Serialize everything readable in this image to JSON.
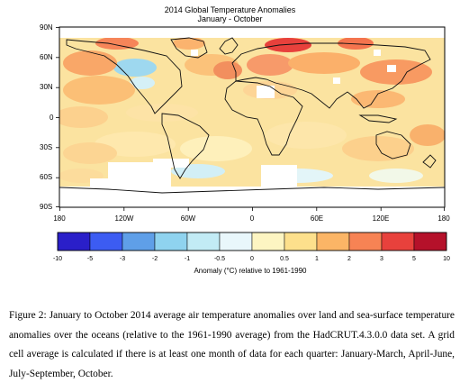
{
  "map": {
    "title": "2014 Global Temperature Anomalies",
    "subtitle": "January - October",
    "lat_labels": [
      "90N",
      "60N",
      "30N",
      "0",
      "30S",
      "60S",
      "90S"
    ],
    "lon_labels": [
      "180",
      "120W",
      "60W",
      "0",
      "60E",
      "120E",
      "180"
    ],
    "projection": "equirectangular",
    "missing_data_color": "#ffffff"
  },
  "colorbar": {
    "title": "Anomaly (°C) relative to 1961-1990",
    "ticks": [
      "-10",
      "-5",
      "-3",
      "-2",
      "-1",
      "-0.5",
      "0",
      "0.5",
      "1",
      "2",
      "3",
      "5",
      "10"
    ],
    "colors": [
      "#2a1fc9",
      "#3c5cf2",
      "#5f9fe8",
      "#8fd3ef",
      "#c2ebf5",
      "#e9f7fb",
      "#fdf5c2",
      "#fde08c",
      "#fbb566",
      "#f78354",
      "#e8413c",
      "#b5112a"
    ]
  },
  "caption": {
    "text": "Figure 2: January to October 2014 average air temperature anomalies over land and sea-surface temperature anomalies over the oceans (relative to the 1961-1990 average) from the HadCRUT.4.3.0.0 data set. A grid cell average is calculated if there is at least one month of data for each quarter: January-March, April-June, July-September, October."
  }
}
